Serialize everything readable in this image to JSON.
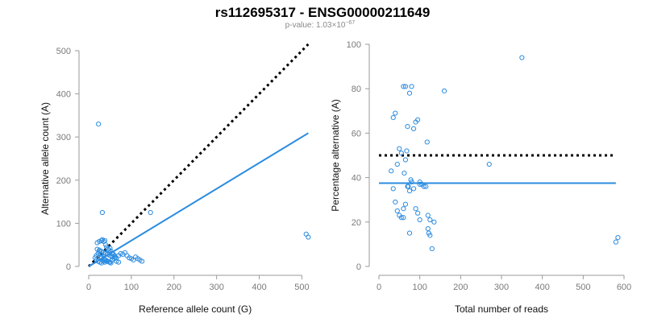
{
  "title": "rs112695317 - ENSG00000211649",
  "subtitle": {
    "text": "p-value: 1.03×10",
    "exponent": "−67"
  },
  "colors": {
    "points": "#2b8ce0",
    "fit_line": "#2b8ce0",
    "reference_line": "#000000",
    "axis": "#9a9a9a"
  },
  "chart_data": [
    {
      "type": "scatter",
      "xlabel": "Reference allele count (G)",
      "ylabel": "Alternative allele count (A)",
      "xlim": [
        0,
        520
      ],
      "ylim": [
        0,
        500
      ],
      "xticks": [
        0,
        100,
        200,
        300,
        400,
        500
      ],
      "yticks": [
        0,
        100,
        200,
        300,
        400,
        500
      ],
      "grid": false,
      "series": [
        {
          "x": [
            20,
            25,
            30,
            32,
            35,
            38,
            40,
            42,
            45,
            48,
            50,
            52,
            55,
            58,
            60,
            62,
            65,
            70,
            75,
            80,
            85,
            90,
            95,
            100,
            105,
            110,
            115,
            120,
            125,
            40,
            45,
            50,
            55,
            30,
            35,
            40,
            45,
            50,
            55,
            60,
            65,
            70,
            15,
            18,
            22,
            25,
            28,
            30,
            35,
            38,
            42,
            48,
            52,
            20,
            25,
            30,
            35,
            40,
            45,
            18,
            22,
            26,
            30,
            34,
            38,
            23,
            32,
            145,
            510,
            515
          ],
          "y": [
            55,
            58,
            60,
            62,
            58,
            60,
            50,
            45,
            40,
            38,
            42,
            35,
            30,
            28,
            25,
            22,
            20,
            25,
            30,
            28,
            32,
            25,
            20,
            18,
            15,
            22,
            18,
            15,
            12,
            30,
            28,
            25,
            22,
            20,
            18,
            15,
            12,
            10,
            15,
            18,
            12,
            10,
            20,
            25,
            30,
            35,
            28,
            22,
            18,
            15,
            12,
            10,
            8,
            40,
            38,
            35,
            32,
            30,
            28,
            15,
            12,
            10,
            8,
            12,
            10,
            330,
            125,
            125,
            75,
            68
          ]
        }
      ],
      "lines": [
        {
          "name": "reference",
          "style": "dotted",
          "x": [
            0,
            515
          ],
          "y": [
            0,
            515
          ]
        },
        {
          "name": "fit",
          "style": "solid",
          "x": [
            0,
            515
          ],
          "y": [
            0,
            309
          ]
        }
      ]
    },
    {
      "type": "scatter",
      "xlabel": "Total number of reads",
      "ylabel": "Percentage alternative (A)",
      "xlim": [
        0,
        600
      ],
      "ylim": [
        0,
        100
      ],
      "xticks": [
        0,
        100,
        200,
        300,
        400,
        500,
        600
      ],
      "yticks": [
        0,
        20,
        40,
        60,
        80,
        100
      ],
      "grid": false,
      "series": [
        {
          "x": [
            30,
            35,
            40,
            45,
            50,
            55,
            60,
            62,
            65,
            68,
            70,
            72,
            75,
            78,
            80,
            85,
            90,
            95,
            100,
            105,
            110,
            115,
            120,
            125,
            35,
            40,
            45,
            50,
            55,
            60,
            65,
            70,
            75,
            80,
            85,
            90,
            95,
            100,
            118,
            120,
            122,
            125,
            130,
            135,
            60,
            65,
            75,
            100,
            160,
            270,
            350,
            580,
            585
          ],
          "y": [
            43,
            35,
            29,
            25,
            23,
            22,
            22,
            42,
            48,
            52,
            36,
            36,
            34,
            39,
            38,
            35,
            26,
            24,
            21,
            37,
            36,
            36,
            23,
            21,
            67,
            69,
            46,
            53,
            51,
            81,
            81,
            63,
            78,
            81,
            62,
            65,
            66,
            37,
            56,
            17,
            15,
            14,
            8,
            20,
            26,
            28,
            15,
            38,
            79,
            46,
            94,
            11,
            13
          ]
        }
      ],
      "lines": [
        {
          "name": "reference",
          "style": "dotted",
          "x": [
            0,
            580
          ],
          "y": [
            50,
            50
          ]
        },
        {
          "name": "fit",
          "style": "solid",
          "x": [
            0,
            580
          ],
          "y": [
            37.5,
            37.5
          ]
        }
      ]
    }
  ]
}
